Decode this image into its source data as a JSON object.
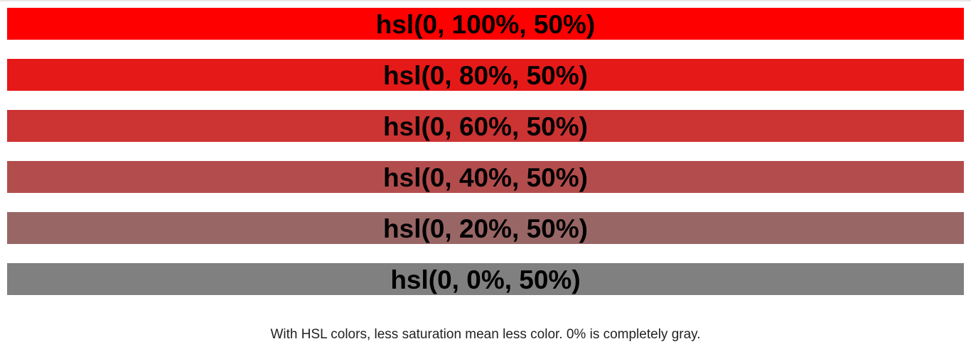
{
  "swatches": [
    {
      "label": "hsl(0, 100%, 50%)",
      "color": "#ff0000"
    },
    {
      "label": "hsl(0, 80%, 50%)",
      "color": "#e61919"
    },
    {
      "label": "hsl(0, 60%, 50%)",
      "color": "#cc3333"
    },
    {
      "label": "hsl(0, 40%, 50%)",
      "color": "#b34d4d"
    },
    {
      "label": "hsl(0, 20%, 50%)",
      "color": "#996666"
    },
    {
      "label": "hsl(0, 0%, 50%)",
      "color": "#808080"
    }
  ],
  "caption": "With HSL colors, less saturation mean less color. 0% is completely gray."
}
